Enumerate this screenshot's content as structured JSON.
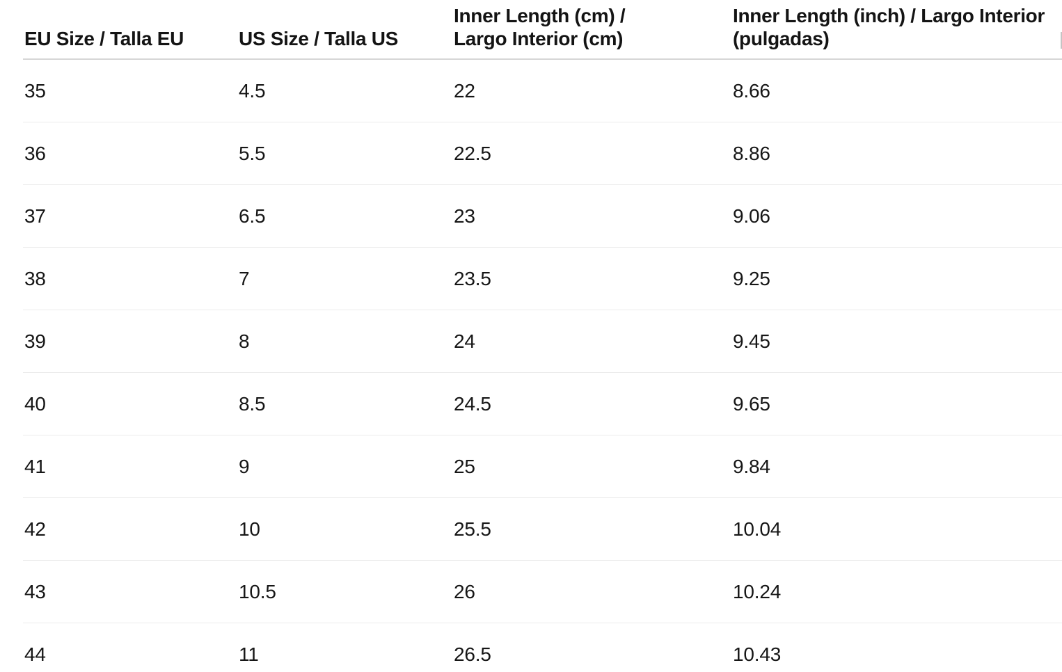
{
  "colors": {
    "background": "#ffffff",
    "text": "#161616",
    "header_text": "#141414",
    "header_border": "#d6d6d6",
    "row_border": "#ebebeb"
  },
  "size_chart": {
    "headers": [
      {
        "key": "eu_size",
        "label": "EU Size / Talla EU",
        "lines": [
          "EU Size / Talla EU"
        ]
      },
      {
        "key": "us_size",
        "label": "US Size / Talla US",
        "lines": [
          "US Size / Talla US"
        ]
      },
      {
        "key": "inner_length_cm",
        "label": "Inner Length (cm) / Largo Interior (cm)",
        "lines": [
          "Inner Length (cm) /",
          "Largo Interior (cm)"
        ]
      },
      {
        "key": "inner_length_inch",
        "label": "Inner Length (inch) / Largo Interior (pulgadas)",
        "lines": [
          "Inner Length (inch) / Largo Interior",
          "(pulgadas)"
        ]
      }
    ],
    "rows": [
      [
        "35",
        "4.5",
        "22",
        "8.66"
      ],
      [
        "36",
        "5.5",
        "22.5",
        "8.86"
      ],
      [
        "37",
        "6.5",
        "23",
        "9.06"
      ],
      [
        "38",
        "7",
        "23.5",
        "9.25"
      ],
      [
        "39",
        "8",
        "24",
        "9.45"
      ],
      [
        "40",
        "8.5",
        "24.5",
        "9.65"
      ],
      [
        "41",
        "9",
        "25",
        "9.84"
      ],
      [
        "42",
        "10",
        "25.5",
        "10.04"
      ],
      [
        "43",
        "10.5",
        "26",
        "10.24"
      ],
      [
        "44",
        "11",
        "26.5",
        "10.43"
      ]
    ]
  }
}
